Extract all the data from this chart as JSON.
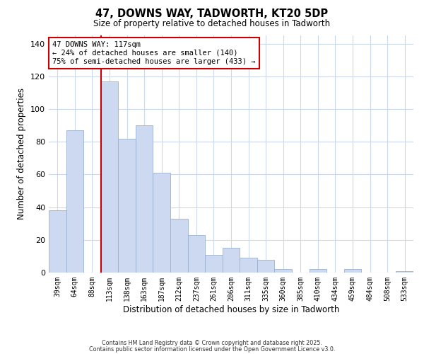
{
  "title": "47, DOWNS WAY, TADWORTH, KT20 5DP",
  "subtitle": "Size of property relative to detached houses in Tadworth",
  "xlabel": "Distribution of detached houses by size in Tadworth",
  "ylabel": "Number of detached properties",
  "bar_labels": [
    "39sqm",
    "64sqm",
    "88sqm",
    "113sqm",
    "138sqm",
    "163sqm",
    "187sqm",
    "212sqm",
    "237sqm",
    "261sqm",
    "286sqm",
    "311sqm",
    "335sqm",
    "360sqm",
    "385sqm",
    "410sqm",
    "434sqm",
    "459sqm",
    "484sqm",
    "508sqm",
    "533sqm"
  ],
  "bar_values": [
    38,
    87,
    0,
    117,
    82,
    90,
    61,
    33,
    23,
    11,
    15,
    9,
    8,
    2,
    0,
    2,
    0,
    2,
    0,
    0,
    1
  ],
  "bar_color": "#ccd9f0",
  "bar_edge_color": "#9ab0d0",
  "bar_width": 1.0,
  "vline_x_index": 3,
  "vline_color": "#cc0000",
  "annotation_title": "47 DOWNS WAY: 117sqm",
  "annotation_line1": "← 24% of detached houses are smaller (140)",
  "annotation_line2": "75% of semi-detached houses are larger (433) →",
  "annotation_box_color": "#ffffff",
  "annotation_box_edge": "#cc0000",
  "ylim": [
    0,
    145
  ],
  "yticks": [
    0,
    20,
    40,
    60,
    80,
    100,
    120,
    140
  ],
  "footer1": "Contains HM Land Registry data © Crown copyright and database right 2025.",
  "footer2": "Contains public sector information licensed under the Open Government Licence v3.0.",
  "background_color": "#ffffff",
  "grid_color": "#ccd8ec"
}
